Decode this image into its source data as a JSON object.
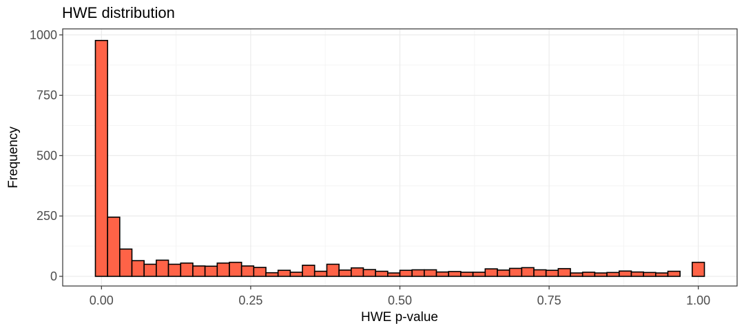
{
  "chart_data": {
    "type": "bar",
    "title": "HWE distribution",
    "xlabel": "HWE p-value",
    "ylabel": "Frequency",
    "xlim": [
      -0.065,
      1.065
    ],
    "ylim": [
      -40,
      1025
    ],
    "x_ticks": [
      0.0,
      0.25,
      0.5,
      0.75,
      1.0
    ],
    "x_tick_labels": [
      "0.00",
      "0.25",
      "0.50",
      "0.75",
      "1.00"
    ],
    "y_ticks": [
      0,
      250,
      500,
      750,
      1000
    ],
    "y_tick_labels": [
      "0",
      "250",
      "500",
      "750",
      "1000"
    ],
    "grid": true,
    "bin_width": 0.0204,
    "bin_centers": [
      0.0,
      0.0204,
      0.0408,
      0.0612,
      0.0816,
      0.102,
      0.1224,
      0.1429,
      0.1633,
      0.1837,
      0.2041,
      0.2245,
      0.2449,
      0.2653,
      0.2857,
      0.3061,
      0.3265,
      0.3469,
      0.3673,
      0.3878,
      0.4082,
      0.4286,
      0.449,
      0.4694,
      0.4898,
      0.5102,
      0.5306,
      0.551,
      0.5714,
      0.5918,
      0.6122,
      0.6327,
      0.6531,
      0.6735,
      0.6939,
      0.7143,
      0.7347,
      0.7551,
      0.7755,
      0.7959,
      0.8163,
      0.8367,
      0.8571,
      0.8776,
      0.898,
      0.9184,
      0.9388,
      0.9592,
      0.9796,
      1.0
    ],
    "values": [
      977,
      245,
      113,
      65,
      50,
      67,
      50,
      55,
      43,
      42,
      55,
      58,
      43,
      37,
      15,
      25,
      17,
      46,
      21,
      50,
      26,
      35,
      28,
      21,
      14,
      25,
      27,
      27,
      18,
      20,
      17,
      17,
      31,
      26,
      33,
      36,
      27,
      25,
      32,
      14,
      17,
      14,
      16,
      22,
      18,
      16,
      14,
      21,
      0,
      58
    ],
    "bar_fill": "#ff6347",
    "bar_stroke": "#000000",
    "panel_border": "#333333",
    "grid_major": "#ebebeb",
    "grid_minor": "#f4f4f4"
  }
}
